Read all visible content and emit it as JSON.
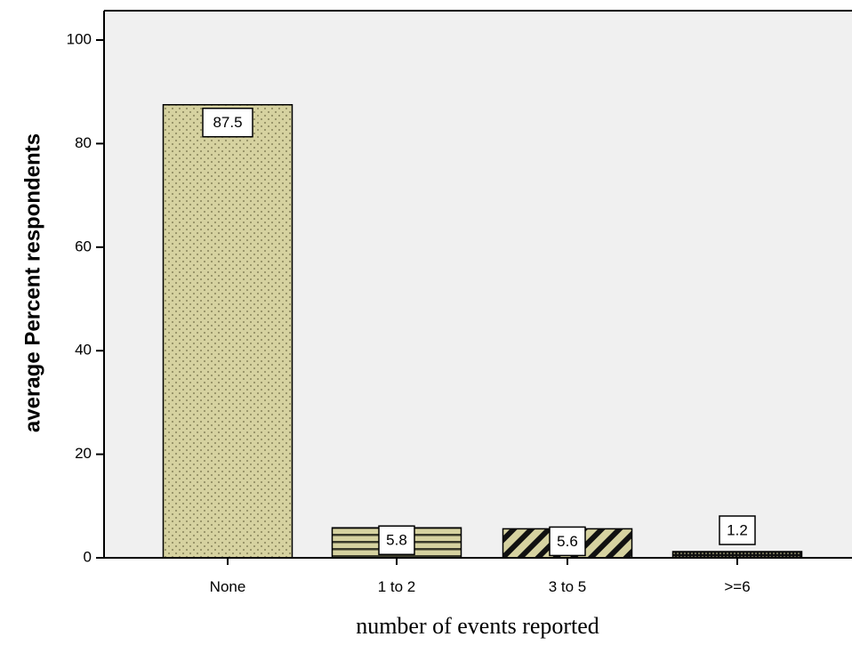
{
  "chart_data": {
    "type": "bar",
    "categories": [
      "None",
      "1 to 2",
      "3 to 5",
      ">=6"
    ],
    "values": [
      87.5,
      5.8,
      5.6,
      1.2
    ],
    "data_labels": [
      "87.5",
      "5.8",
      "5.6",
      "1.2"
    ],
    "title": "",
    "xlabel": "number of events reported",
    "ylabel": "average Percent respondents",
    "ylim": [
      0,
      100
    ],
    "yticks": [
      0,
      20,
      40,
      60,
      80,
      100
    ],
    "grid": false,
    "legend": "none",
    "bar_color": "#d6d2a0",
    "plot_background": "#f0f0f0",
    "bar_patterns": [
      "dots",
      "horizontal-stripes",
      "diagonal-stripes",
      "dense-dots"
    ]
  }
}
